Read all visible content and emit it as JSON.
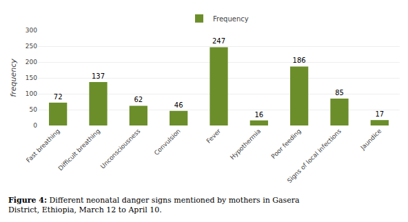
{
  "chart_data": {
    "type": "bar",
    "categories": [
      "Fast breathing",
      "Difficult breathing",
      "Unconsciousness",
      "Convulsion",
      "Fever",
      "Hypothermia",
      "Poor feeding",
      "Signs of local infections",
      "Jaundice"
    ],
    "series": [
      {
        "name": "Frequency",
        "color": "#6b8e2a",
        "values": [
          72,
          137,
          62,
          46,
          247,
          16,
          186,
          85,
          17
        ]
      }
    ],
    "y_label": "frequency",
    "ylim": [
      0,
      300
    ],
    "yticks": [
      0,
      50,
      100,
      150,
      200,
      250,
      300
    ],
    "grid": true,
    "legend": "top",
    "data_labels": true,
    "annotations": [
      "Figure 4:",
      "Different neonatal danger signs mentioned by mothers in Gasera\nDistrict, Ethiopia, March 12 to April 10."
    ]
  }
}
